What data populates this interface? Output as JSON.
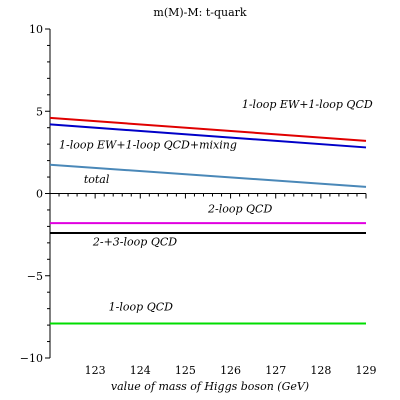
{
  "chart_data": {
    "type": "line",
    "title": "m(M)-M:  t-quark",
    "xlabel": "value of mass of Higgs boson (GeV)",
    "ylabel": "",
    "xlim": [
      122,
      129
    ],
    "ylim": [
      -10,
      10
    ],
    "x_ticks": [
      123,
      124,
      125,
      126,
      127,
      128,
      129
    ],
    "y_ticks": [
      -10,
      -5,
      0,
      5,
      10
    ],
    "x_tick_labels": [
      "123",
      "124",
      "125",
      "126",
      "127",
      "128",
      "129"
    ],
    "y_tick_labels": [
      "−10",
      "−5",
      "0",
      "5",
      "10"
    ],
    "grid": false,
    "series": [
      {
        "name": "1-loop EW+1-loop QCD",
        "color": "#e00000",
        "x": [
          122,
          129
        ],
        "y": [
          4.6,
          3.2
        ]
      },
      {
        "name": "1-loop EW+1-loop QCD+mixing",
        "color": "#0000c8",
        "x": [
          122,
          129
        ],
        "y": [
          4.2,
          2.8
        ]
      },
      {
        "name": "total",
        "color": "#4a88b8",
        "x": [
          122,
          129
        ],
        "y": [
          1.75,
          0.4
        ]
      },
      {
        "name": "2-loop QCD",
        "color": "#e000e0",
        "x": [
          122,
          129
        ],
        "y": [
          -1.8,
          -1.8
        ]
      },
      {
        "name": "2-+3-loop QCD",
        "color": "#000000",
        "x": [
          122,
          129
        ],
        "y": [
          -2.4,
          -2.4
        ]
      },
      {
        "name": "1-loop QCD",
        "color": "#00dd00",
        "x": [
          122,
          129
        ],
        "y": [
          -7.9,
          -7.9
        ]
      }
    ],
    "annotations": [
      {
        "text": "1-loop EW+1-loop QCD",
        "x": 126.25,
        "y": 5.2
      },
      {
        "text": "1-loop EW+1-loop QCD+mixing",
        "x": 122.2,
        "y": 2.75
      },
      {
        "text": "total",
        "x": 122.75,
        "y": 0.65
      },
      {
        "text": "2-loop QCD",
        "x": 125.5,
        "y": -1.15
      },
      {
        "text": "2-+3-loop QCD",
        "x": 122.95,
        "y": -3.15
      },
      {
        "text": "1-loop QCD",
        "x": 123.3,
        "y": -7.1
      }
    ]
  }
}
